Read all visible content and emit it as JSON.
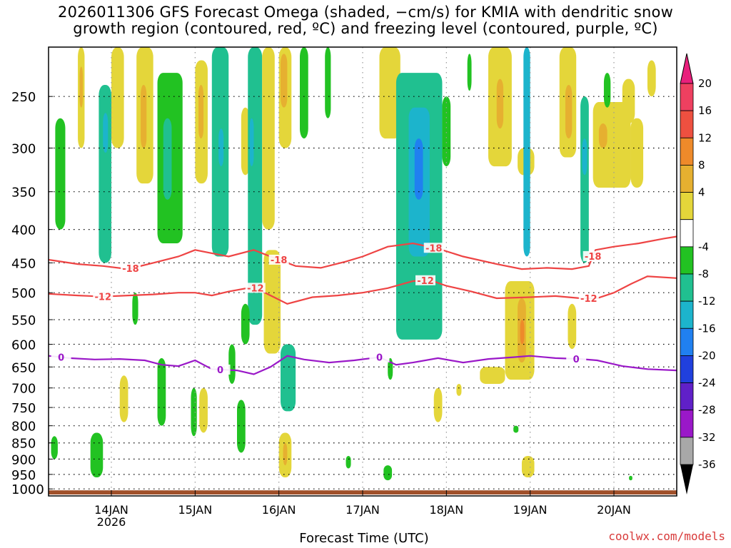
{
  "title": {
    "line1": "2026011306 GFS Forecast Omega (shaded, −cm/s) for KMIA with dendritic snow",
    "line2": "growth region (contoured, red, ºC) and freezing level (contoured, purple, ºC)"
  },
  "credit": "coolwx.com/models",
  "chart_data": {
    "type": "heatmap",
    "title": "2026011306 GFS Forecast Omega (shaded, −cm/s) for KMIA with dendritic snow growth region (contoured, red, ºC) and freezing level (contoured, purple, ºC)",
    "xlabel": "Forecast Time (UTC)",
    "ylabel": "",
    "x_unit": "day",
    "xlim": [
      13.25,
      20.75
    ],
    "ylim_hpa": [
      210,
      1025
    ],
    "y_scale": "log-pressure (inverted)",
    "x_ticks": [
      {
        "x": 14,
        "label": "14JAN",
        "sublabel": "2026"
      },
      {
        "x": 15,
        "label": "15JAN"
      },
      {
        "x": 16,
        "label": "16JAN"
      },
      {
        "x": 17,
        "label": "17JAN"
      },
      {
        "x": 18,
        "label": "18JAN"
      },
      {
        "x": 19,
        "label": "19JAN"
      },
      {
        "x": 20,
        "label": "20JAN"
      }
    ],
    "y_ticks": [
      250,
      300,
      350,
      400,
      450,
      500,
      550,
      600,
      650,
      700,
      750,
      800,
      850,
      900,
      950,
      1000
    ],
    "grid": true,
    "colorbar": {
      "labels": [
        "20",
        "16",
        "12",
        "8",
        "4",
        "-4",
        "-8",
        "-12",
        "-16",
        "-20",
        "-24",
        "-28",
        "-32",
        "-36"
      ],
      "bins": [
        {
          "color": "#ee4060"
        },
        {
          "color": "#ee5040"
        },
        {
          "color": "#ee8a2a"
        },
        {
          "color": "#e6b030"
        },
        {
          "color": "#e4d63a"
        },
        {
          "color": "#ffffff"
        },
        {
          "color": "#22c222"
        },
        {
          "color": "#20c090"
        },
        {
          "color": "#1cb4cc"
        },
        {
          "color": "#2080f0"
        },
        {
          "color": "#2040dd"
        },
        {
          "color": "#6020c8"
        },
        {
          "color": "#9a18c8"
        },
        {
          "color": "#a8a8a8"
        }
      ],
      "top_color": "#e8207c",
      "bottom_color": "#000000"
    },
    "contours": [
      {
        "label": "-18",
        "color": "#ee4444",
        "label_at": [
          [
            14.23,
            "-18"
          ],
          [
            16.0,
            "-18"
          ],
          [
            17.85,
            "-18"
          ],
          [
            19.75,
            "-18"
          ]
        ],
        "points": [
          [
            13.25,
            445
          ],
          [
            13.6,
            452
          ],
          [
            13.9,
            455
          ],
          [
            14.2,
            460
          ],
          [
            14.5,
            450
          ],
          [
            14.8,
            440
          ],
          [
            15.0,
            430
          ],
          [
            15.2,
            435
          ],
          [
            15.4,
            440
          ],
          [
            15.7,
            430
          ],
          [
            15.9,
            440
          ],
          [
            16.2,
            455
          ],
          [
            16.5,
            458
          ],
          [
            16.8,
            448
          ],
          [
            17.0,
            440
          ],
          [
            17.3,
            425
          ],
          [
            17.6,
            420
          ],
          [
            17.9,
            428
          ],
          [
            18.2,
            440
          ],
          [
            18.6,
            452
          ],
          [
            18.9,
            460
          ],
          [
            19.2,
            458
          ],
          [
            19.5,
            460
          ],
          [
            19.7,
            455
          ],
          [
            19.78,
            430
          ],
          [
            20.0,
            425
          ],
          [
            20.3,
            420
          ],
          [
            20.6,
            413
          ],
          [
            20.75,
            410
          ]
        ]
      },
      {
        "label": "-12",
        "color": "#ee4444",
        "label_at": [
          [
            13.9,
            "-12"
          ],
          [
            15.72,
            "-12"
          ],
          [
            17.75,
            "-12"
          ],
          [
            19.7,
            "-12"
          ]
        ],
        "points": [
          [
            13.25,
            502
          ],
          [
            13.6,
            505
          ],
          [
            13.9,
            507
          ],
          [
            14.2,
            505
          ],
          [
            14.5,
            503
          ],
          [
            14.8,
            500
          ],
          [
            15.0,
            500
          ],
          [
            15.2,
            505
          ],
          [
            15.4,
            498
          ],
          [
            15.7,
            490
          ],
          [
            15.9,
            505
          ],
          [
            16.1,
            520
          ],
          [
            16.4,
            508
          ],
          [
            16.7,
            505
          ],
          [
            17.0,
            500
          ],
          [
            17.3,
            492
          ],
          [
            17.6,
            480
          ],
          [
            17.8,
            478
          ],
          [
            18.0,
            488
          ],
          [
            18.3,
            498
          ],
          [
            18.6,
            510
          ],
          [
            19.0,
            508
          ],
          [
            19.3,
            506
          ],
          [
            19.6,
            510
          ],
          [
            19.8,
            510
          ],
          [
            20.0,
            500
          ],
          [
            20.2,
            485
          ],
          [
            20.4,
            472
          ],
          [
            20.75,
            475
          ]
        ]
      },
      {
        "label": "0",
        "color": "#9a18c8",
        "label_at": [
          [
            13.4,
            "0"
          ],
          [
            15.3,
            "0"
          ],
          [
            17.2,
            "0"
          ],
          [
            19.55,
            "0"
          ]
        ],
        "points": [
          [
            13.25,
            625
          ],
          [
            13.5,
            630
          ],
          [
            13.8,
            633
          ],
          [
            14.1,
            632
          ],
          [
            14.4,
            635
          ],
          [
            14.6,
            645
          ],
          [
            14.8,
            648
          ],
          [
            15.0,
            635
          ],
          [
            15.2,
            655
          ],
          [
            15.5,
            658
          ],
          [
            15.7,
            667
          ],
          [
            15.9,
            650
          ],
          [
            16.1,
            625
          ],
          [
            16.3,
            633
          ],
          [
            16.6,
            640
          ],
          [
            16.9,
            635
          ],
          [
            17.2,
            628
          ],
          [
            17.4,
            645
          ],
          [
            17.6,
            640
          ],
          [
            17.9,
            630
          ],
          [
            18.2,
            640
          ],
          [
            18.5,
            632
          ],
          [
            18.8,
            628
          ],
          [
            19.0,
            625
          ],
          [
            19.3,
            630
          ],
          [
            19.6,
            632
          ],
          [
            19.8,
            635
          ],
          [
            20.1,
            648
          ],
          [
            20.4,
            655
          ],
          [
            20.75,
            658
          ]
        ]
      }
    ],
    "omega_regions": [
      {
        "value": 6,
        "x0": 13.6,
        "x1": 13.68,
        "p0": 210,
        "p1": 300
      },
      {
        "value": 10,
        "x0": 13.62,
        "x1": 13.66,
        "p0": 225,
        "p1": 260
      },
      {
        "value": -8,
        "x0": 13.85,
        "x1": 14.0,
        "p0": 240,
        "p1": 450
      },
      {
        "value": -14,
        "x0": 13.9,
        "x1": 13.96,
        "p0": 265,
        "p1": 305
      },
      {
        "value": -6,
        "x0": 13.33,
        "x1": 13.45,
        "p0": 270,
        "p1": 400
      },
      {
        "value": 6,
        "x0": 14.0,
        "x1": 14.15,
        "p0": 210,
        "p1": 300
      },
      {
        "value": 6,
        "x0": 14.3,
        "x1": 14.5,
        "p0": 210,
        "p1": 340
      },
      {
        "value": 10,
        "x0": 14.35,
        "x1": 14.42,
        "p0": 240,
        "p1": 300
      },
      {
        "value": -6,
        "x0": 14.55,
        "x1": 14.85,
        "p0": 230,
        "p1": 420
      },
      {
        "value": -10,
        "x0": 14.62,
        "x1": 14.72,
        "p0": 270,
        "p1": 360
      },
      {
        "value": 6,
        "x0": 15.0,
        "x1": 15.15,
        "p0": 220,
        "p1": 340
      },
      {
        "value": 10,
        "x0": 15.04,
        "x1": 15.1,
        "p0": 240,
        "p1": 290
      },
      {
        "value": -8,
        "x0": 15.2,
        "x1": 15.4,
        "p0": 210,
        "p1": 440
      },
      {
        "value": -14,
        "x0": 15.28,
        "x1": 15.34,
        "p0": 280,
        "p1": 320
      },
      {
        "value": 6,
        "x0": 15.55,
        "x1": 15.65,
        "p0": 260,
        "p1": 330
      },
      {
        "value": -8,
        "x0": 15.63,
        "x1": 15.8,
        "p0": 210,
        "p1": 560
      },
      {
        "value": -14,
        "x0": 15.65,
        "x1": 15.7,
        "p0": 270,
        "p1": 320
      },
      {
        "value": 6,
        "x0": 15.8,
        "x1": 15.95,
        "p0": 210,
        "p1": 400
      },
      {
        "value": 6,
        "x0": 16.0,
        "x1": 16.15,
        "p0": 210,
        "p1": 300
      },
      {
        "value": 10,
        "x0": 16.02,
        "x1": 16.1,
        "p0": 215,
        "p1": 260
      },
      {
        "value": -6,
        "x0": 16.25,
        "x1": 16.35,
        "p0": 210,
        "p1": 290
      },
      {
        "value": -6,
        "x0": 16.55,
        "x1": 16.62,
        "p0": 210,
        "p1": 270
      },
      {
        "value": 6,
        "x0": 17.2,
        "x1": 17.45,
        "p0": 210,
        "p1": 290
      },
      {
        "value": 6,
        "x0": 17.45,
        "x1": 17.5,
        "p0": 290,
        "p1": 310
      },
      {
        "value": -8,
        "x0": 17.4,
        "x1": 17.95,
        "p0": 230,
        "p1": 590
      },
      {
        "value": -12,
        "x0": 17.55,
        "x1": 17.8,
        "p0": 260,
        "p1": 440
      },
      {
        "value": -16,
        "x0": 17.62,
        "x1": 17.72,
        "p0": 290,
        "p1": 360
      },
      {
        "value": -6,
        "x0": 17.95,
        "x1": 18.05,
        "p0": 250,
        "p1": 320
      },
      {
        "value": -6,
        "x0": 18.25,
        "x1": 18.3,
        "p0": 215,
        "p1": 245
      },
      {
        "value": 6,
        "x0": 18.5,
        "x1": 18.78,
        "p0": 210,
        "p1": 320
      },
      {
        "value": 10,
        "x0": 18.6,
        "x1": 18.68,
        "p0": 235,
        "p1": 280
      },
      {
        "value": 6,
        "x0": 18.85,
        "x1": 19.05,
        "p0": 300,
        "p1": 330
      },
      {
        "value": -12,
        "x0": 18.92,
        "x1": 19.0,
        "p0": 210,
        "p1": 440
      },
      {
        "value": 6,
        "x0": 19.35,
        "x1": 19.55,
        "p0": 210,
        "p1": 310
      },
      {
        "value": 10,
        "x0": 19.42,
        "x1": 19.5,
        "p0": 240,
        "p1": 290
      },
      {
        "value": -8,
        "x0": 19.6,
        "x1": 19.7,
        "p0": 250,
        "p1": 450
      },
      {
        "value": -12,
        "x0": 19.62,
        "x1": 19.68,
        "p0": 290,
        "p1": 330
      },
      {
        "value": 6,
        "x0": 19.75,
        "x1": 20.2,
        "p0": 255,
        "p1": 345
      },
      {
        "value": 10,
        "x0": 19.82,
        "x1": 19.92,
        "p0": 275,
        "p1": 300
      },
      {
        "value": 6,
        "x0": 20.1,
        "x1": 20.25,
        "p0": 235,
        "p1": 275
      },
      {
        "value": 6,
        "x0": 20.2,
        "x1": 20.35,
        "p0": 270,
        "p1": 345
      },
      {
        "value": 6,
        "x0": 20.4,
        "x1": 20.5,
        "p0": 220,
        "p1": 250
      },
      {
        "value": -6,
        "x0": 19.88,
        "x1": 19.96,
        "p0": 230,
        "p1": 260
      },
      {
        "value": 6,
        "x0": 15.82,
        "x1": 16.02,
        "p0": 430,
        "p1": 620
      },
      {
        "value": -8,
        "x0": 16.02,
        "x1": 16.2,
        "p0": 600,
        "p1": 760
      },
      {
        "value": -6,
        "x0": 15.55,
        "x1": 15.65,
        "p0": 520,
        "p1": 600
      },
      {
        "value": 6,
        "x0": 16.0,
        "x1": 16.15,
        "p0": 820,
        "p1": 960
      },
      {
        "value": 10,
        "x0": 16.05,
        "x1": 16.1,
        "p0": 850,
        "p1": 920
      },
      {
        "value": -6,
        "x0": 15.4,
        "x1": 15.48,
        "p0": 600,
        "p1": 690
      },
      {
        "value": -6,
        "x0": 14.25,
        "x1": 14.32,
        "p0": 500,
        "p1": 560
      },
      {
        "value": -6,
        "x0": 14.55,
        "x1": 14.65,
        "p0": 630,
        "p1": 800
      },
      {
        "value": -6,
        "x0": 14.95,
        "x1": 15.02,
        "p0": 700,
        "p1": 830
      },
      {
        "value": 6,
        "x0": 14.1,
        "x1": 14.2,
        "p0": 670,
        "p1": 790
      },
      {
        "value": -6,
        "x0": 13.75,
        "x1": 13.9,
        "p0": 820,
        "p1": 960
      },
      {
        "value": -6,
        "x0": 13.28,
        "x1": 13.36,
        "p0": 830,
        "p1": 900
      },
      {
        "value": -6,
        "x0": 15.5,
        "x1": 15.6,
        "p0": 730,
        "p1": 880
      },
      {
        "value": -6,
        "x0": 17.25,
        "x1": 17.35,
        "p0": 920,
        "p1": 970
      },
      {
        "value": -6,
        "x0": 17.3,
        "x1": 17.36,
        "p0": 630,
        "p1": 680
      },
      {
        "value": 6,
        "x0": 17.85,
        "x1": 17.95,
        "p0": 700,
        "p1": 790
      },
      {
        "value": 6,
        "x0": 18.12,
        "x1": 18.18,
        "p0": 690,
        "p1": 720
      },
      {
        "value": 6,
        "x0": 18.4,
        "x1": 18.7,
        "p0": 650,
        "p1": 690
      },
      {
        "value": 6,
        "x0": 18.7,
        "x1": 19.05,
        "p0": 480,
        "p1": 680
      },
      {
        "value": 10,
        "x0": 18.85,
        "x1": 18.95,
        "p0": 510,
        "p1": 640
      },
      {
        "value": 12,
        "x0": 18.88,
        "x1": 18.93,
        "p0": 550,
        "p1": 600
      },
      {
        "value": 6,
        "x0": 19.45,
        "x1": 19.55,
        "p0": 520,
        "p1": 610
      },
      {
        "value": 6,
        "x0": 18.9,
        "x1": 19.05,
        "p0": 890,
        "p1": 960
      },
      {
        "value": -6,
        "x0": 18.8,
        "x1": 18.86,
        "p0": 800,
        "p1": 820
      },
      {
        "value": -6,
        "x0": 16.8,
        "x1": 16.86,
        "p0": 890,
        "p1": 930
      },
      {
        "value": -6,
        "x0": 20.18,
        "x1": 20.22,
        "p0": 955,
        "p1": 970
      },
      {
        "value": 6,
        "x0": 15.05,
        "x1": 15.15,
        "p0": 700,
        "p1": 820
      }
    ],
    "surface_band": {
      "color": "#a0502a",
      "p0": 1005,
      "p1": 1025
    }
  },
  "axis": {
    "xlabel": "Forecast Time (UTC)"
  }
}
